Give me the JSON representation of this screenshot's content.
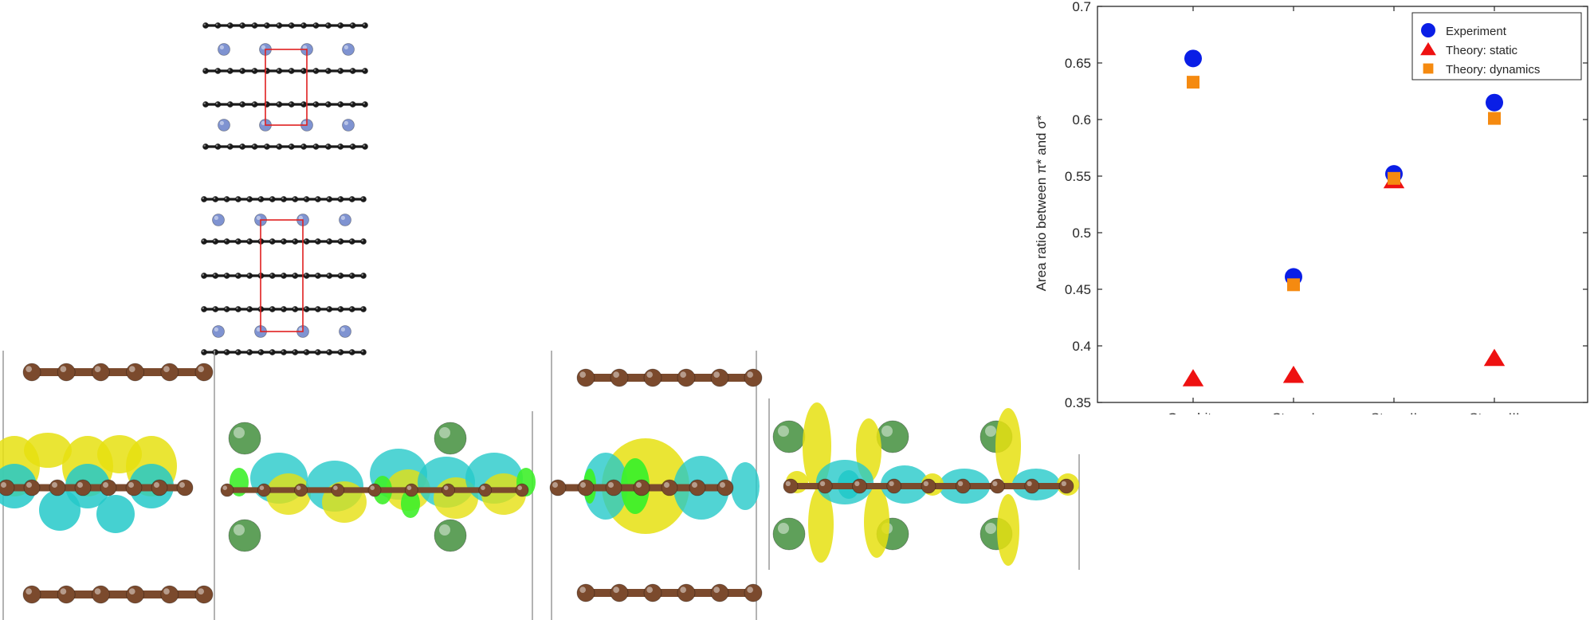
{
  "figure": {
    "panels": [
      {
        "name": "unit-cell-stage-II",
        "atoms": [
          "carbon",
          "metal"
        ]
      },
      {
        "name": "unit-cell-stage-III",
        "atoms": [
          "carbon",
          "metal"
        ]
      },
      {
        "name": "charge-density-graphite",
        "atoms": [
          "carbon"
        ]
      },
      {
        "name": "charge-density-stage-I",
        "atoms": [
          "carbon",
          "metal"
        ]
      },
      {
        "name": "charge-density-graphite-2",
        "atoms": [
          "carbon"
        ]
      },
      {
        "name": "charge-density-stage-I-2",
        "atoms": [
          "carbon",
          "metal"
        ]
      }
    ],
    "colors": {
      "carbon_unit_cell": "#1a1a1a",
      "metal_unit_cell": "#7f93d1",
      "unit_cell_outline": "#e02020",
      "carbon_bonded": "#7b4a2d",
      "metal_green": "#5fa05a",
      "density_yellow": "#e6e010",
      "density_cyan": "#25c9c9",
      "density_green": "#3ef02a",
      "frame_line": "#9a9a9a"
    }
  },
  "chart_data": {
    "type": "scatter",
    "title": "",
    "xlabel": "",
    "ylabel": "Area ratio between π* and σ*",
    "categories": [
      "Graphite",
      "Stage I",
      "Stage II",
      "Stage III"
    ],
    "ylim": [
      0.35,
      0.7
    ],
    "yticks": [
      "0.35",
      "0.4",
      "0.45",
      "0.5",
      "0.55",
      "0.6",
      "0.65",
      "0.7"
    ],
    "grid": false,
    "legend_position": "top-right",
    "series": [
      {
        "name": "Experiment",
        "marker": "circle",
        "color": "#0a1ee6",
        "values": [
          0.654,
          0.461,
          0.552,
          0.615
        ]
      },
      {
        "name": "Theory: static",
        "marker": "triangle",
        "color": "#ee1111",
        "values": [
          0.371,
          0.374,
          0.546,
          0.389
        ]
      },
      {
        "name": "Theory: dynamics",
        "marker": "square",
        "color": "#f58a10",
        "values": [
          0.633,
          0.454,
          0.548,
          0.601
        ]
      }
    ]
  }
}
